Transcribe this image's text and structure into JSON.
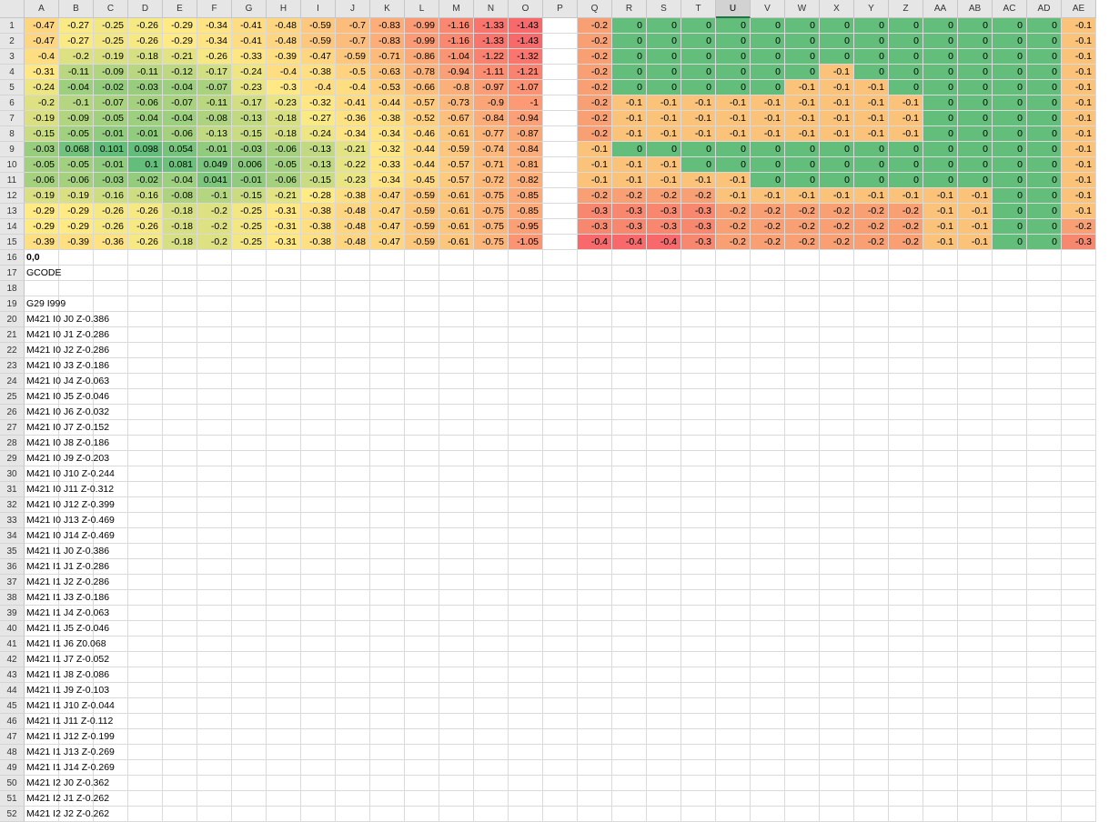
{
  "columns": [
    "A",
    "B",
    "C",
    "D",
    "E",
    "F",
    "G",
    "H",
    "I",
    "J",
    "K",
    "L",
    "M",
    "N",
    "O",
    "P",
    "Q",
    "R",
    "S",
    "T",
    "U",
    "V",
    "W",
    "X",
    "Y",
    "Z",
    "AA",
    "AB",
    "AC",
    "AD",
    "AE"
  ],
  "selected_column": "U",
  "visible_rows": 52,
  "colors": {
    "green": "#63be7b",
    "orange": "#fbc27a",
    "red_light": "#f8a073",
    "red": "#f8696b",
    "scale_min": "#63be7b",
    "scale_mid": "#ffeb84",
    "scale_max": "#f8696b"
  },
  "left_grid": [
    [
      "-0.47",
      "-0.27",
      "-0.25",
      "-0.26",
      "-0.29",
      "-0.34",
      "-0.41",
      "-0.48",
      "-0.59",
      "-0.7",
      "-0.83",
      "-0.99",
      "-1.16",
      "-1.33",
      "-1.43"
    ],
    [
      "-0.47",
      "-0.27",
      "-0.25",
      "-0.26",
      "-0.29",
      "-0.34",
      "-0.41",
      "-0.48",
      "-0.59",
      "-0.7",
      "-0.83",
      "-0.99",
      "-1.16",
      "-1.33",
      "-1.43"
    ],
    [
      "-0.4",
      "-0.2",
      "-0.19",
      "-0.18",
      "-0.21",
      "-0.26",
      "-0.33",
      "-0.39",
      "-0.47",
      "-0.59",
      "-0.71",
      "-0.86",
      "-1.04",
      "-1.22",
      "-1.32"
    ],
    [
      "-0.31",
      "-0.11",
      "-0.09",
      "-0.11",
      "-0.12",
      "-0.17",
      "-0.24",
      "-0.4",
      "-0.38",
      "-0.5",
      "-0.63",
      "-0.78",
      "-0.94",
      "-1.11",
      "-1.21"
    ],
    [
      "-0.24",
      "-0.04",
      "-0.02",
      "-0.03",
      "-0.04",
      "-0.07",
      "-0.23",
      "-0.3",
      "-0.4",
      "-0.4",
      "-0.53",
      "-0.66",
      "-0.8",
      "-0.97",
      "-1.07"
    ],
    [
      "-0.2",
      "-0.1",
      "-0.07",
      "-0.06",
      "-0.07",
      "-0.11",
      "-0.17",
      "-0.23",
      "-0.32",
      "-0.41",
      "-0.44",
      "-0.57",
      "-0.73",
      "-0.9",
      "-1"
    ],
    [
      "-0.19",
      "-0.09",
      "-0.05",
      "-0.04",
      "-0.04",
      "-0.08",
      "-0.13",
      "-0.18",
      "-0.27",
      "-0.36",
      "-0.38",
      "-0.52",
      "-0.67",
      "-0.84",
      "-0.94"
    ],
    [
      "-0.15",
      "-0.05",
      "-0.01",
      "-0.01",
      "-0.06",
      "-0.13",
      "-0.15",
      "-0.18",
      "-0.24",
      "-0.34",
      "-0.34",
      "-0.46",
      "-0.61",
      "-0.77",
      "-0.87"
    ],
    [
      "-0.03",
      "0.068",
      "0.101",
      "0.098",
      "0.054",
      "-0.01",
      "-0.03",
      "-0.06",
      "-0.13",
      "-0.21",
      "-0.32",
      "-0.44",
      "-0.59",
      "-0.74",
      "-0.84"
    ],
    [
      "-0.05",
      "-0.05",
      "-0.01",
      "0.1",
      "0.081",
      "0.049",
      "0.006",
      "-0.05",
      "-0.13",
      "-0.22",
      "-0.33",
      "-0.44",
      "-0.57",
      "-0.71",
      "-0.81"
    ],
    [
      "-0.06",
      "-0.06",
      "-0.03",
      "-0.02",
      "-0.04",
      "0.041",
      "-0.01",
      "-0.06",
      "-0.15",
      "-0.23",
      "-0.34",
      "-0.45",
      "-0.57",
      "-0.72",
      "-0.82"
    ],
    [
      "-0.19",
      "-0.19",
      "-0.16",
      "-0.16",
      "-0.08",
      "-0.1",
      "-0.15",
      "-0.21",
      "-0.28",
      "-0.38",
      "-0.47",
      "-0.59",
      "-0.61",
      "-0.75",
      "-0.85"
    ],
    [
      "-0.29",
      "-0.29",
      "-0.26",
      "-0.26",
      "-0.18",
      "-0.2",
      "-0.25",
      "-0.31",
      "-0.38",
      "-0.48",
      "-0.47",
      "-0.59",
      "-0.61",
      "-0.75",
      "-0.85"
    ],
    [
      "-0.29",
      "-0.29",
      "-0.26",
      "-0.26",
      "-0.18",
      "-0.2",
      "-0.25",
      "-0.31",
      "-0.38",
      "-0.48",
      "-0.47",
      "-0.59",
      "-0.61",
      "-0.75",
      "-0.95"
    ],
    [
      "-0.39",
      "-0.39",
      "-0.36",
      "-0.26",
      "-0.18",
      "-0.2",
      "-0.25",
      "-0.31",
      "-0.38",
      "-0.48",
      "-0.47",
      "-0.59",
      "-0.61",
      "-0.75",
      "-1.05"
    ]
  ],
  "right_grid": [
    [
      "-0.2",
      "0",
      "0",
      "0",
      "0",
      "0",
      "0",
      "0",
      "0",
      "0",
      "0",
      "0",
      "0",
      "0",
      "-0.1"
    ],
    [
      "-0.2",
      "0",
      "0",
      "0",
      "0",
      "0",
      "0",
      "0",
      "0",
      "0",
      "0",
      "0",
      "0",
      "0",
      "-0.1"
    ],
    [
      "-0.2",
      "0",
      "0",
      "0",
      "0",
      "0",
      "0",
      "0",
      "0",
      "0",
      "0",
      "0",
      "0",
      "0",
      "-0.1"
    ],
    [
      "-0.2",
      "0",
      "0",
      "0",
      "0",
      "0",
      "0",
      "-0.1",
      "0",
      "0",
      "0",
      "0",
      "0",
      "0",
      "-0.1"
    ],
    [
      "-0.2",
      "0",
      "0",
      "0",
      "0",
      "0",
      "-0.1",
      "-0.1",
      "-0.1",
      "0",
      "0",
      "0",
      "0",
      "0",
      "-0.1"
    ],
    [
      "-0.2",
      "-0.1",
      "-0.1",
      "-0.1",
      "-0.1",
      "-0.1",
      "-0.1",
      "-0.1",
      "-0.1",
      "-0.1",
      "0",
      "0",
      "0",
      "0",
      "-0.1"
    ],
    [
      "-0.2",
      "-0.1",
      "-0.1",
      "-0.1",
      "-0.1",
      "-0.1",
      "-0.1",
      "-0.1",
      "-0.1",
      "-0.1",
      "0",
      "0",
      "0",
      "0",
      "-0.1"
    ],
    [
      "-0.2",
      "-0.1",
      "-0.1",
      "-0.1",
      "-0.1",
      "-0.1",
      "-0.1",
      "-0.1",
      "-0.1",
      "-0.1",
      "0",
      "0",
      "0",
      "0",
      "-0.1"
    ],
    [
      "-0.1",
      "0",
      "0",
      "0",
      "0",
      "0",
      "0",
      "0",
      "0",
      "0",
      "0",
      "0",
      "0",
      "0",
      "-0.1"
    ],
    [
      "-0.1",
      "-0.1",
      "-0.1",
      "0",
      "0",
      "0",
      "0",
      "0",
      "0",
      "0",
      "0",
      "0",
      "0",
      "0",
      "-0.1"
    ],
    [
      "-0.1",
      "-0.1",
      "-0.1",
      "-0.1",
      "-0.1",
      "0",
      "0",
      "0",
      "0",
      "0",
      "0",
      "0",
      "0",
      "0",
      "-0.1"
    ],
    [
      "-0.2",
      "-0.2",
      "-0.2",
      "-0.2",
      "-0.1",
      "-0.1",
      "-0.1",
      "-0.1",
      "-0.1",
      "-0.1",
      "-0.1",
      "-0.1",
      "0",
      "0",
      "-0.1"
    ],
    [
      "-0.3",
      "-0.3",
      "-0.3",
      "-0.3",
      "-0.2",
      "-0.2",
      "-0.2",
      "-0.2",
      "-0.2",
      "-0.2",
      "-0.1",
      "-0.1",
      "0",
      "0",
      "-0.1"
    ],
    [
      "-0.3",
      "-0.3",
      "-0.3",
      "-0.3",
      "-0.2",
      "-0.2",
      "-0.2",
      "-0.2",
      "-0.2",
      "-0.2",
      "-0.1",
      "-0.1",
      "0",
      "0",
      "-0.2"
    ],
    [
      "-0.4",
      "-0.4",
      "-0.4",
      "-0.3",
      "-0.2",
      "-0.2",
      "-0.2",
      "-0.2",
      "-0.2",
      "-0.2",
      "-0.1",
      "-0.1",
      "0",
      "0",
      "-0.3"
    ]
  ],
  "column_a_text": [
    {
      "row": 16,
      "text": "0,0",
      "bold": true
    },
    {
      "row": 17,
      "text": "GCODE"
    },
    {
      "row": 19,
      "text": "G29 I999"
    },
    {
      "row": 20,
      "text": "M421 I0 J0 Z-0.386"
    },
    {
      "row": 21,
      "text": "M421 I0 J1 Z-0.286"
    },
    {
      "row": 22,
      "text": "M421 I0 J2 Z-0.286"
    },
    {
      "row": 23,
      "text": "M421 I0 J3 Z-0.186"
    },
    {
      "row": 24,
      "text": "M421 I0 J4 Z-0.063"
    },
    {
      "row": 25,
      "text": "M421 I0 J5 Z-0.046"
    },
    {
      "row": 26,
      "text": "M421 I0 J6 Z-0.032"
    },
    {
      "row": 27,
      "text": "M421 I0 J7 Z-0.152"
    },
    {
      "row": 28,
      "text": "M421 I0 J8 Z-0.186"
    },
    {
      "row": 29,
      "text": "M421 I0 J9 Z-0.203"
    },
    {
      "row": 30,
      "text": "M421 I0 J10 Z-0.244"
    },
    {
      "row": 31,
      "text": "M421 I0 J11 Z-0.312"
    },
    {
      "row": 32,
      "text": "M421 I0 J12 Z-0.399"
    },
    {
      "row": 33,
      "text": "M421 I0 J13 Z-0.469"
    },
    {
      "row": 34,
      "text": "M421 I0 J14 Z-0.469"
    },
    {
      "row": 35,
      "text": "M421 I1 J0 Z-0.386"
    },
    {
      "row": 36,
      "text": "M421 I1 J1 Z-0.286"
    },
    {
      "row": 37,
      "text": "M421 I1 J2 Z-0.286"
    },
    {
      "row": 38,
      "text": "M421 I1 J3 Z-0.186"
    },
    {
      "row": 39,
      "text": "M421 I1 J4 Z-0.063"
    },
    {
      "row": 40,
      "text": "M421 I1 J5 Z-0.046"
    },
    {
      "row": 41,
      "text": "M421 I1 J6 Z0.068"
    },
    {
      "row": 42,
      "text": "M421 I1 J7 Z-0.052"
    },
    {
      "row": 43,
      "text": "M421 I1 J8 Z-0.086"
    },
    {
      "row": 44,
      "text": "M421 I1 J9 Z-0.103"
    },
    {
      "row": 45,
      "text": "M421 I1 J10 Z-0.044"
    },
    {
      "row": 46,
      "text": "M421 I1 J11 Z-0.112"
    },
    {
      "row": 47,
      "text": "M421 I1 J12 Z-0.199"
    },
    {
      "row": 48,
      "text": "M421 I1 J13 Z-0.269"
    },
    {
      "row": 49,
      "text": "M421 I1 J14 Z-0.269"
    },
    {
      "row": 50,
      "text": "M421 I2 J0 Z-0.362"
    },
    {
      "row": 51,
      "text": "M421 I2 J1 Z-0.262"
    },
    {
      "row": 52,
      "text": "M421 I2 J2 Z-0.262"
    }
  ]
}
